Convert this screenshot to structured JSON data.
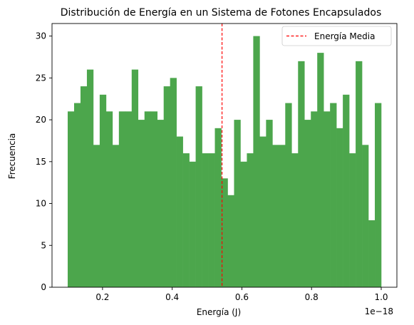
{
  "chart_data": {
    "type": "bar",
    "title": "Distribución de Energía en un Sistema de Fotones Encapsulados",
    "xlabel": "Energía (J)",
    "ylabel": "Frecuencia",
    "x_offset_label": "1e−18",
    "xlim": [
      0.055,
      1.045
    ],
    "ylim": [
      0,
      31.5
    ],
    "x_ticks": [
      0.2,
      0.4,
      0.6,
      0.8,
      1.0
    ],
    "x_tick_labels": [
      "0.2",
      "0.4",
      "0.6",
      "0.8",
      "1.0"
    ],
    "y_ticks": [
      0,
      5,
      10,
      15,
      20,
      25,
      30
    ],
    "y_tick_labels": [
      "0",
      "5",
      "10",
      "15",
      "20",
      "25",
      "30"
    ],
    "bin_start": 0.1,
    "bin_end": 1.0,
    "bar_color": "#4ca64c",
    "values": [
      21,
      22,
      24,
      26,
      17,
      23,
      21,
      17,
      21,
      21,
      26,
      20,
      21,
      21,
      20,
      24,
      25,
      18,
      16,
      15,
      24,
      16,
      16,
      19,
      13,
      11,
      20,
      15,
      16,
      30,
      18,
      20,
      17,
      17,
      22,
      16,
      27,
      20,
      21,
      28,
      21,
      22,
      19,
      23,
      16,
      27,
      17,
      8,
      22
    ],
    "mean_line": {
      "x": 0.543,
      "label": "Energía Media",
      "color": "#ff0000"
    },
    "legend": {
      "position": "top-right",
      "entries": [
        "Energía Media"
      ]
    },
    "grid": false
  }
}
